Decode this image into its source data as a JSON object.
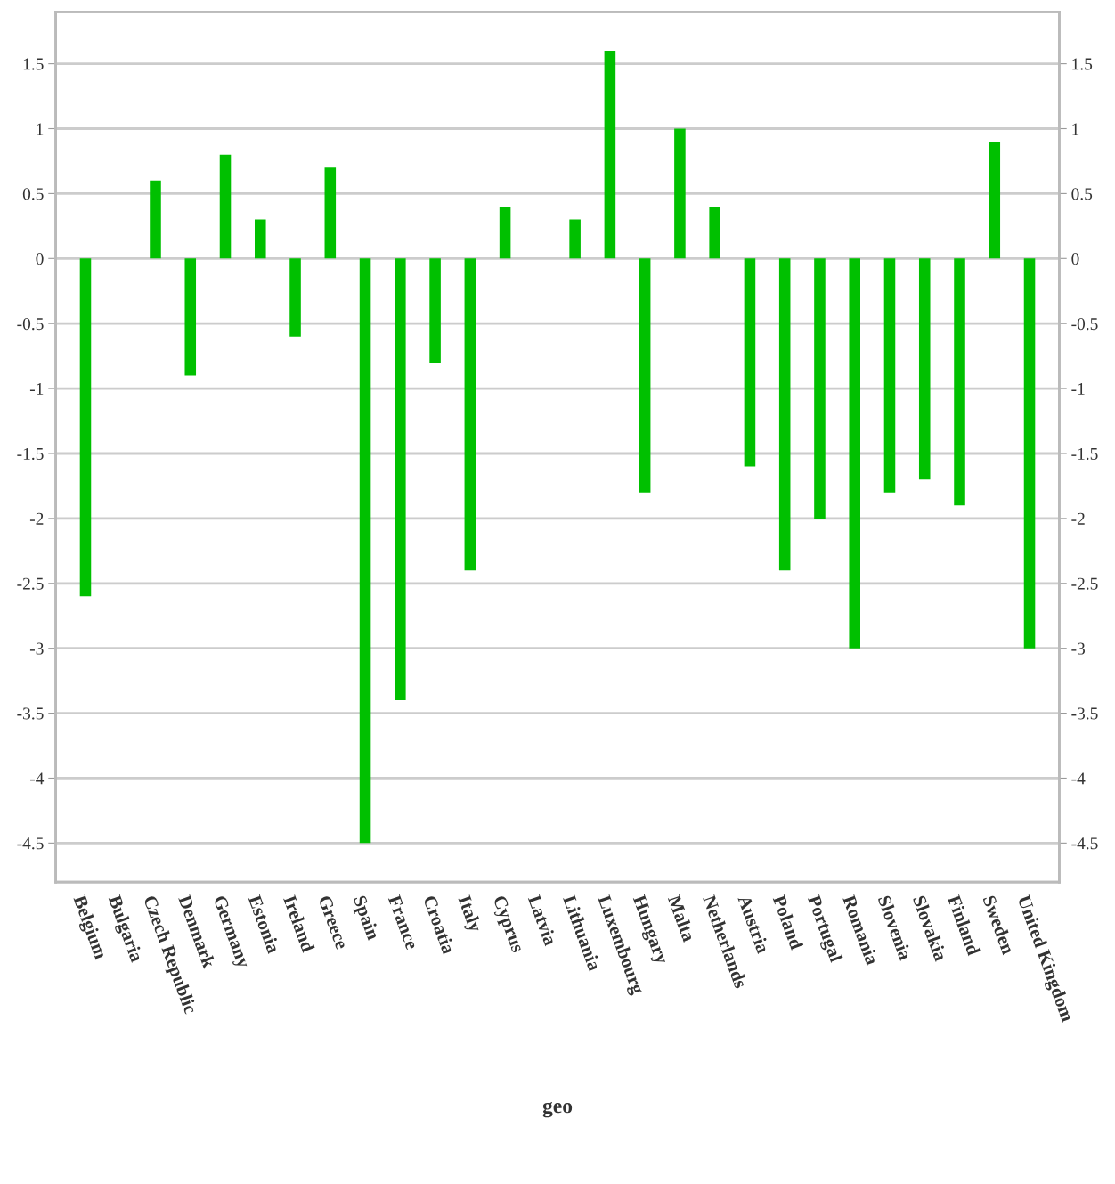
{
  "chart_data": {
    "type": "bar",
    "xlabel": "geo",
    "categories": [
      "Belgium",
      "Bulgaria",
      "Czech Republic",
      "Denmark",
      "Germany",
      "Estonia",
      "Ireland",
      "Greece",
      "Spain",
      "France",
      "Croatia",
      "Italy",
      "Cyprus",
      "Latvia",
      "Lithuania",
      "Luxembourg",
      "Hungary",
      "Malta",
      "Netherlands",
      "Austria",
      "Poland",
      "Portugal",
      "Romania",
      "Slovenia",
      "Slovakia",
      "Finland",
      "Sweden",
      "United Kingdom"
    ],
    "values": [
      -2.6,
      null,
      0.6,
      -0.9,
      0.8,
      0.3,
      -0.6,
      0.7,
      -4.5,
      -3.4,
      -0.8,
      -2.4,
      0.4,
      null,
      0.3,
      1.6,
      -1.8,
      1.0,
      0.4,
      -1.6,
      -2.4,
      -2.0,
      -3.0,
      -1.8,
      -1.7,
      -1.9,
      0.9,
      -3.0
    ],
    "color": "#00c000",
    "ylim": [
      -4.8,
      1.9
    ],
    "yticks": [
      1.5,
      1,
      0.5,
      0,
      -0.5,
      -1,
      -1.5,
      -2,
      -2.5,
      -3,
      -3.5,
      -4,
      -4.5
    ],
    "y2lim": [
      -4.8,
      1.9
    ],
    "y2ticks": [
      1.5,
      1,
      0.5,
      0,
      -0.5,
      -1,
      -1.5,
      -2,
      -2.5,
      -3,
      -3.5,
      -4,
      -4.5
    ],
    "grid": "y"
  }
}
